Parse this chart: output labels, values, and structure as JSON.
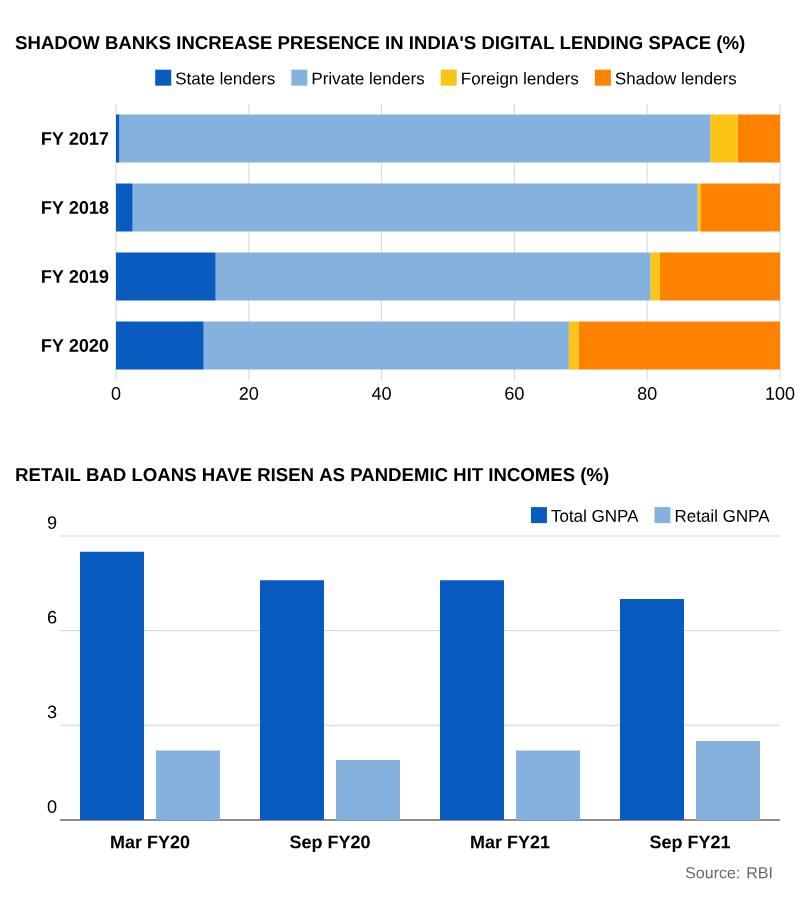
{
  "chart_data": [
    {
      "type": "bar",
      "orientation": "horizontal",
      "stacked": true,
      "title": "SHADOW BANKS INCREASE PRESENCE IN INDIA'S DIGITAL LENDING SPACE (%)",
      "categories": [
        "FY 2017",
        "FY 2018",
        "FY 2019",
        "FY 2020"
      ],
      "series": [
        {
          "name": "State lenders",
          "color": "#0a5bbf",
          "values": [
            0.5,
            2.5,
            15.0,
            13.2
          ]
        },
        {
          "name": "Private lenders",
          "color": "#85b1de",
          "values": [
            89.0,
            85.1,
            65.5,
            55.0
          ]
        },
        {
          "name": "Foreign lenders",
          "color": "#fcc414",
          "values": [
            4.1,
            0.5,
            1.4,
            1.5
          ]
        },
        {
          "name": "Shadow lenders",
          "color": "#fc8200",
          "values": [
            6.4,
            11.9,
            18.1,
            30.3
          ]
        }
      ],
      "xlim": [
        0,
        100
      ],
      "xticks": [
        0,
        20,
        40,
        60,
        80,
        100
      ],
      "grid": "x",
      "legend": "top"
    },
    {
      "type": "bar",
      "title": "RETAIL BAD LOANS HAVE RISEN AS PANDEMIC HIT INCOMES (%)",
      "categories": [
        "Mar FY20",
        "Sep FY20",
        "Mar FY21",
        "Sep FY21"
      ],
      "series": [
        {
          "name": "Total GNPA",
          "color": "#0a5bbf",
          "values": [
            8.5,
            7.6,
            7.6,
            7.0
          ]
        },
        {
          "name": "Retail GNPA",
          "color": "#85b1de",
          "values": [
            2.2,
            1.9,
            2.2,
            2.5
          ]
        }
      ],
      "ylim": [
        0,
        9
      ],
      "yticks": [
        0,
        3,
        6,
        9
      ],
      "grid": "y",
      "legend": "top right",
      "annotations": [
        "Source: RBI"
      ]
    }
  ]
}
